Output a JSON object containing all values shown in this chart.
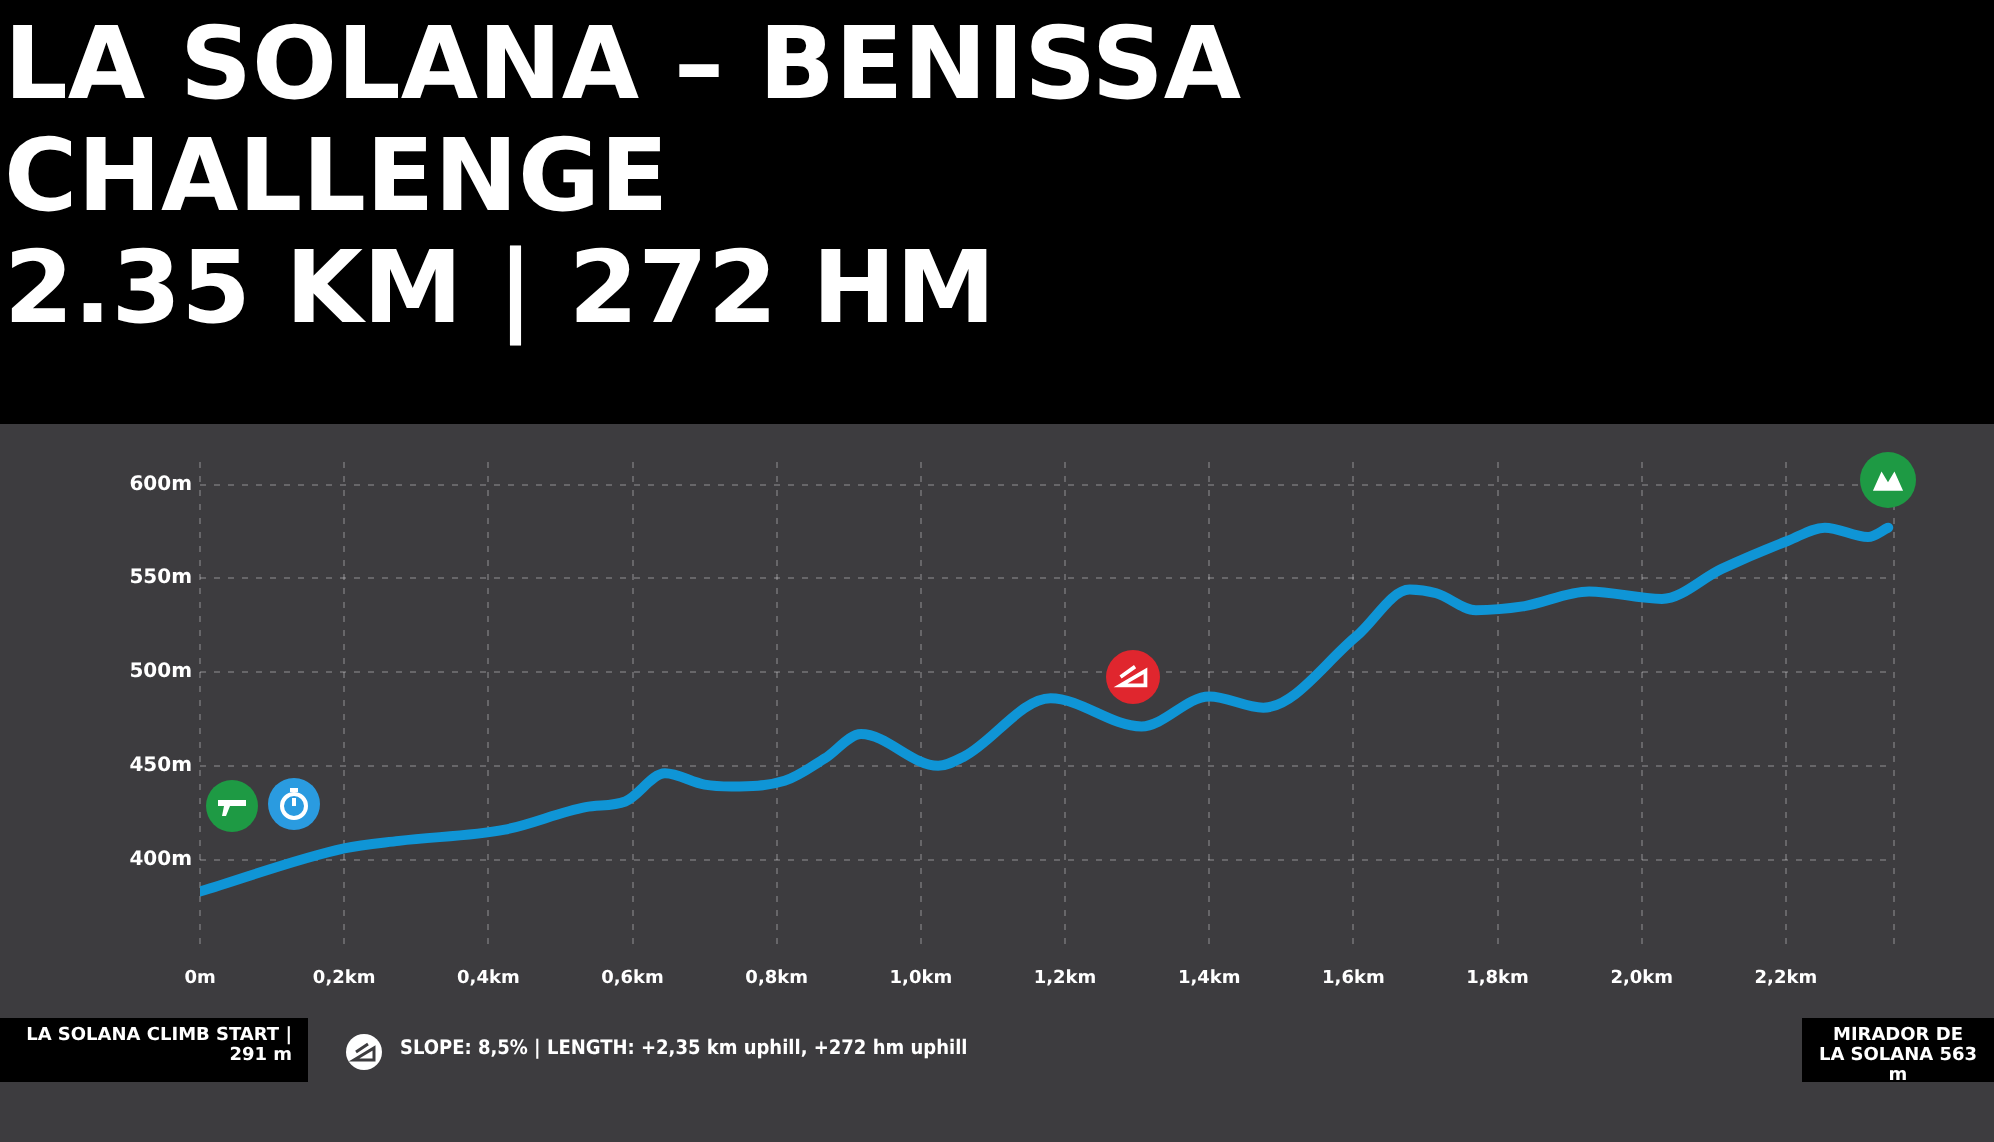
{
  "chart_data": {
    "type": "line",
    "title": "LA SOLANA – BENISSA CHALLENGE",
    "subtitle": "2.35 KM | 272 HM",
    "annotations": [
      "LA SOLANA CLIMB START | 291 m",
      "SLOPE: 8,5% | LENGTH: +2,35 km uphill, +272 hm uphill",
      "MIRADOR DE LA SOLANA 563 m"
    ],
    "x": [
      0,
      0.2,
      0.276,
      0.423,
      0.535,
      0.59,
      0.645,
      0.7,
      0.737,
      0.811,
      0.867,
      0.917,
      1.024,
      1.06,
      1.18,
      1.306,
      1.4,
      1.475,
      1.604,
      1.678,
      1.715,
      1.77,
      1.835,
      1.927,
      2.028,
      2.111,
      2.203,
      2.254,
      2.314,
      2.342
    ],
    "series": [
      {
        "color": "#0f95d6",
        "values": [
          383,
          406,
          410,
          416,
          428,
          431,
          446,
          440,
          439,
          442,
          454,
          467,
          450,
          455,
          486,
          471,
          487,
          481,
          519,
          544,
          542,
          533,
          535,
          543,
          539,
          555,
          570,
          577,
          572,
          577
        ]
      }
    ],
    "xlim": [
      0,
      2.35
    ],
    "ylim": [
      355,
      612
    ],
    "xticks": [
      {
        "value": 0,
        "label": "0m"
      },
      {
        "value": 0.2,
        "label": "0,2km"
      },
      {
        "value": 0.4,
        "label": "0,4km"
      },
      {
        "value": 0.6,
        "label": "0,6km"
      },
      {
        "value": 0.8,
        "label": "0,8km"
      },
      {
        "value": 1,
        "label": "1,0km"
      },
      {
        "value": 1.2,
        "label": "1,2km"
      },
      {
        "value": 1.4,
        "label": "1,4km"
      },
      {
        "value": 1.6,
        "label": "1,6km"
      },
      {
        "value": 1.8,
        "label": "1,8km"
      },
      {
        "value": 2,
        "label": "2,0km"
      },
      {
        "value": 2.2,
        "label": "2,2km"
      },
      {
        "value": 2.35,
        "label": null
      }
    ],
    "yticks": [
      {
        "value": 400,
        "label": "400m"
      },
      {
        "value": 450,
        "label": "450m"
      },
      {
        "value": 500,
        "label": "500m"
      },
      {
        "value": 550,
        "label": "550m"
      },
      {
        "value": 600,
        "label": "600m"
      }
    ],
    "grid": true,
    "marker": "none",
    "line_style": "solid"
  }
}
